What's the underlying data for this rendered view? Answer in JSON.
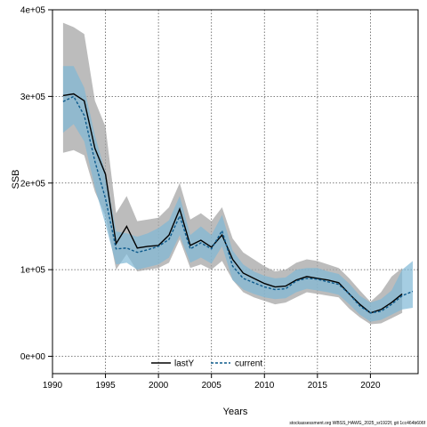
{
  "chart_data": {
    "type": "line",
    "xlabel": "Years",
    "ylabel": "SSB",
    "xlim": [
      1990,
      2024.5
    ],
    "ylim": [
      -20000,
      400000
    ],
    "x_ticks": [
      1990,
      1995,
      2000,
      2005,
      2010,
      2015,
      2020
    ],
    "y_ticks": [
      0,
      100000,
      200000,
      300000,
      400000
    ],
    "x_tick_labels": [
      "1990",
      "1995",
      "2000",
      "2005",
      "2010",
      "2015",
      "2020"
    ],
    "y_tick_labels": [
      "0e+00",
      "1e+05",
      "2e+05",
      "3e+05",
      "4e+05"
    ],
    "grid": true,
    "legend_position": "bottom-center",
    "x": [
      1991,
      1992,
      1993,
      1994,
      1995,
      1996,
      1997,
      1998,
      1999,
      2000,
      2001,
      2002,
      2003,
      2004,
      2005,
      2006,
      2007,
      2008,
      2009,
      2010,
      2011,
      2012,
      2013,
      2014,
      2015,
      2016,
      2017,
      2018,
      2019,
      2020,
      2021,
      2022,
      2023,
      2024
    ],
    "series": [
      {
        "name": "lastY",
        "color": "#000000",
        "band_color": "#a6a6a6",
        "line_style": "solid",
        "x": [
          1991,
          1992,
          1993,
          1994,
          1995,
          1996,
          1997,
          1998,
          1999,
          2000,
          2001,
          2002,
          2003,
          2004,
          2005,
          2006,
          2007,
          2008,
          2009,
          2010,
          2011,
          2012,
          2013,
          2014,
          2015,
          2016,
          2017,
          2018,
          2019,
          2020,
          2021,
          2022,
          2023
        ],
        "values": [
          301000,
          303000,
          295000,
          240000,
          210000,
          130000,
          150000,
          125000,
          127000,
          128000,
          140000,
          170000,
          128000,
          134000,
          126000,
          140000,
          112000,
          96000,
          90000,
          84000,
          80000,
          81000,
          88000,
          92000,
          90000,
          88000,
          85000,
          72000,
          60000,
          50000,
          54000,
          62000,
          72000
        ],
        "lower": [
          235000,
          238000,
          232000,
          190000,
          162000,
          100000,
          118000,
          98000,
          100000,
          102000,
          108000,
          135000,
          102000,
          106000,
          100000,
          110000,
          88000,
          74000,
          68000,
          64000,
          60000,
          62000,
          68000,
          74000,
          72000,
          70000,
          68000,
          55000,
          45000,
          37000,
          38000,
          44000,
          50000
        ],
        "upper": [
          385000,
          380000,
          372000,
          295000,
          265000,
          165000,
          185000,
          156000,
          158000,
          160000,
          172000,
          200000,
          158000,
          165000,
          156000,
          172000,
          136000,
          120000,
          112000,
          104000,
          98000,
          100000,
          108000,
          112000,
          110000,
          106000,
          102000,
          90000,
          76000,
          63000,
          74000,
          92000,
          102000
        ]
      },
      {
        "name": "current",
        "color": "#0d5a8c",
        "band_color": "#7fb8d6",
        "line_style": "dashed",
        "x": [
          1991,
          1992,
          1993,
          1994,
          1995,
          1996,
          1997,
          1998,
          1999,
          2000,
          2001,
          2002,
          2003,
          2004,
          2005,
          2006,
          2007,
          2008,
          2009,
          2010,
          2011,
          2012,
          2013,
          2014,
          2015,
          2016,
          2017,
          2018,
          2019,
          2020,
          2021,
          2022,
          2023,
          2024
        ],
        "values": [
          294000,
          300000,
          278000,
          225000,
          182000,
          124000,
          125000,
          120000,
          123000,
          127000,
          135000,
          162000,
          124000,
          131000,
          124000,
          145000,
          104000,
          90000,
          85000,
          80000,
          77000,
          78000,
          87000,
          90000,
          89000,
          86000,
          83000,
          72000,
          58000,
          50000,
          52000,
          60000,
          70000,
          75000
        ],
        "lower": [
          258000,
          268000,
          248000,
          195000,
          152000,
          106000,
          108000,
          100000,
          103000,
          106000,
          114000,
          140000,
          108000,
          114000,
          107000,
          127000,
          88000,
          77000,
          72000,
          68000,
          66000,
          67000,
          74000,
          78000,
          76000,
          74000,
          71000,
          60000,
          48000,
          40000,
          42000,
          48000,
          54000,
          56000
        ],
        "upper": [
          335000,
          335000,
          310000,
          255000,
          212000,
          144000,
          142000,
          138000,
          142000,
          148000,
          157000,
          185000,
          140000,
          150000,
          140000,
          163000,
          122000,
          106000,
          98000,
          93000,
          90000,
          91000,
          100000,
          102000,
          102000,
          98000,
          95000,
          84000,
          70000,
          62000,
          66000,
          76000,
          100000,
          110000
        ]
      }
    ]
  },
  "credit": "stockassessment.org WBSS_HAWG_2025_sr1922f, git 1cc464b606f"
}
